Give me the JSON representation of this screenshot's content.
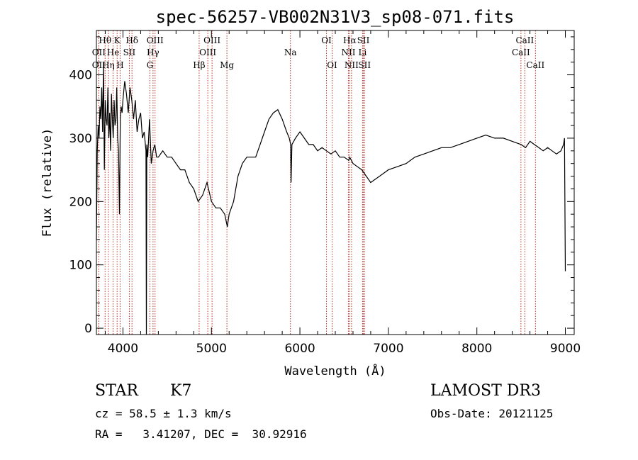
{
  "chart_data": {
    "type": "line",
    "title": "spec-56257-VB002N31V3_sp08-071.fits",
    "xlabel": "Wavelength (Å)",
    "ylabel": "Flux (relative)",
    "xlim": [
      3700,
      9100
    ],
    "ylim": [
      -10,
      470
    ],
    "xticks": [
      4000,
      5000,
      6000,
      7000,
      8000,
      9000
    ],
    "yticks": [
      0,
      100,
      200,
      300,
      400
    ],
    "grid": false,
    "series": [
      {
        "x": [
          3700,
          3710,
          3720,
          3730,
          3740,
          3750,
          3760,
          3770,
          3780,
          3790,
          3800,
          3810,
          3820,
          3830,
          3840,
          3850,
          3860,
          3870,
          3880,
          3890,
          3900,
          3910,
          3920,
          3930,
          3940,
          3950,
          3960,
          3970,
          3980,
          3990,
          4000,
          4020,
          4040,
          4060,
          4080,
          4100,
          4120,
          4140,
          4160,
          4180,
          4200,
          4220,
          4240,
          4260,
          4265,
          4270,
          4280,
          4300,
          4320,
          4340,
          4360,
          4380,
          4400,
          4450,
          4500,
          4550,
          4600,
          4650,
          4700,
          4750,
          4800,
          4850,
          4900,
          4950,
          5000,
          5050,
          5100,
          5150,
          5180,
          5200,
          5250,
          5300,
          5350,
          5400,
          5450,
          5500,
          5550,
          5600,
          5650,
          5700,
          5750,
          5800,
          5850,
          5880,
          5895,
          5900,
          5910,
          5950,
          6000,
          6050,
          6100,
          6150,
          6200,
          6250,
          6300,
          6350,
          6400,
          6450,
          6500,
          6550,
          6563,
          6600,
          6650,
          6700,
          6750,
          6800,
          6850,
          6900,
          6950,
          7000,
          7100,
          7200,
          7300,
          7400,
          7500,
          7600,
          7700,
          7800,
          7900,
          8000,
          8100,
          8200,
          8300,
          8400,
          8500,
          8550,
          8600,
          8650,
          8700,
          8750,
          8800,
          8850,
          8900,
          8950,
          8980,
          8990,
          9000
        ],
        "y": [
          140,
          280,
          320,
          300,
          350,
          330,
          380,
          310,
          420,
          250,
          360,
          330,
          320,
          380,
          300,
          340,
          280,
          370,
          330,
          300,
          360,
          320,
          330,
          380,
          300,
          280,
          180,
          330,
          350,
          340,
          360,
          390,
          370,
          340,
          380,
          360,
          330,
          360,
          310,
          330,
          340,
          300,
          310,
          280,
          -10,
          290,
          270,
          330,
          260,
          280,
          290,
          270,
          270,
          280,
          270,
          270,
          260,
          250,
          250,
          230,
          220,
          200,
          210,
          230,
          200,
          190,
          190,
          180,
          160,
          180,
          200,
          240,
          260,
          270,
          270,
          270,
          290,
          310,
          330,
          340,
          345,
          330,
          310,
          300,
          290,
          230,
          290,
          300,
          310,
          300,
          290,
          290,
          280,
          285,
          280,
          275,
          280,
          270,
          270,
          265,
          270,
          260,
          255,
          250,
          240,
          230,
          235,
          240,
          245,
          250,
          255,
          260,
          270,
          275,
          280,
          285,
          285,
          290,
          295,
          300,
          305,
          300,
          300,
          295,
          290,
          285,
          295,
          290,
          285,
          280,
          285,
          280,
          275,
          280,
          290,
          300,
          90
        ]
      }
    ],
    "line_markers": [
      {
        "label": "Hθ",
        "x": 3798,
        "row": 1
      },
      {
        "label": "OII",
        "x": 3727,
        "row": 2
      },
      {
        "label": "OII",
        "x": 3727,
        "row": 3
      },
      {
        "label": "He",
        "x": 3889,
        "row": 2
      },
      {
        "label": "Hη",
        "x": 3835,
        "row": 3
      },
      {
        "label": "K",
        "x": 3934,
        "row": 1
      },
      {
        "label": "H",
        "x": 3968,
        "row": 3
      },
      {
        "label": "SII",
        "x": 4072,
        "row": 2
      },
      {
        "label": "Hδ",
        "x": 4102,
        "row": 1
      },
      {
        "label": "OIII",
        "x": 4363,
        "row": 1
      },
      {
        "label": "Hγ",
        "x": 4340,
        "row": 2
      },
      {
        "label": "G",
        "x": 4305,
        "row": 3
      },
      {
        "label": "Hβ",
        "x": 4861,
        "row": 3
      },
      {
        "label": "OIII",
        "x": 5007,
        "row": 1
      },
      {
        "label": "OIII",
        "x": 4959,
        "row": 2
      },
      {
        "label": "Mg",
        "x": 5175,
        "row": 3
      },
      {
        "label": "Na",
        "x": 5893,
        "row": 2
      },
      {
        "label": "OI",
        "x": 6300,
        "row": 1
      },
      {
        "label": "OI",
        "x": 6364,
        "row": 3
      },
      {
        "label": "Hα",
        "x": 6563,
        "row": 1
      },
      {
        "label": "SII",
        "x": 6717,
        "row": 1
      },
      {
        "label": "NII",
        "x": 6548,
        "row": 2
      },
      {
        "label": "Li",
        "x": 6708,
        "row": 2
      },
      {
        "label": "NII",
        "x": 6583,
        "row": 3
      },
      {
        "label": "SII",
        "x": 6731,
        "row": 3
      },
      {
        "label": "CaII",
        "x": 8542,
        "row": 1
      },
      {
        "label": "CaII",
        "x": 8498,
        "row": 2
      },
      {
        "label": "CaII",
        "x": 8662,
        "row": 3
      }
    ]
  },
  "info": {
    "object_type": "STAR",
    "subclass": "K7",
    "survey": "LAMOST DR3",
    "redshift": "cz = 58.5 ± 1.3 km/s",
    "obs_date": "Obs-Date: 20121125",
    "coords": "RA =   3.41207, DEC =  30.92916"
  },
  "colors": {
    "line": "#000000",
    "marker": "#c0392b",
    "axes": "#000000"
  }
}
